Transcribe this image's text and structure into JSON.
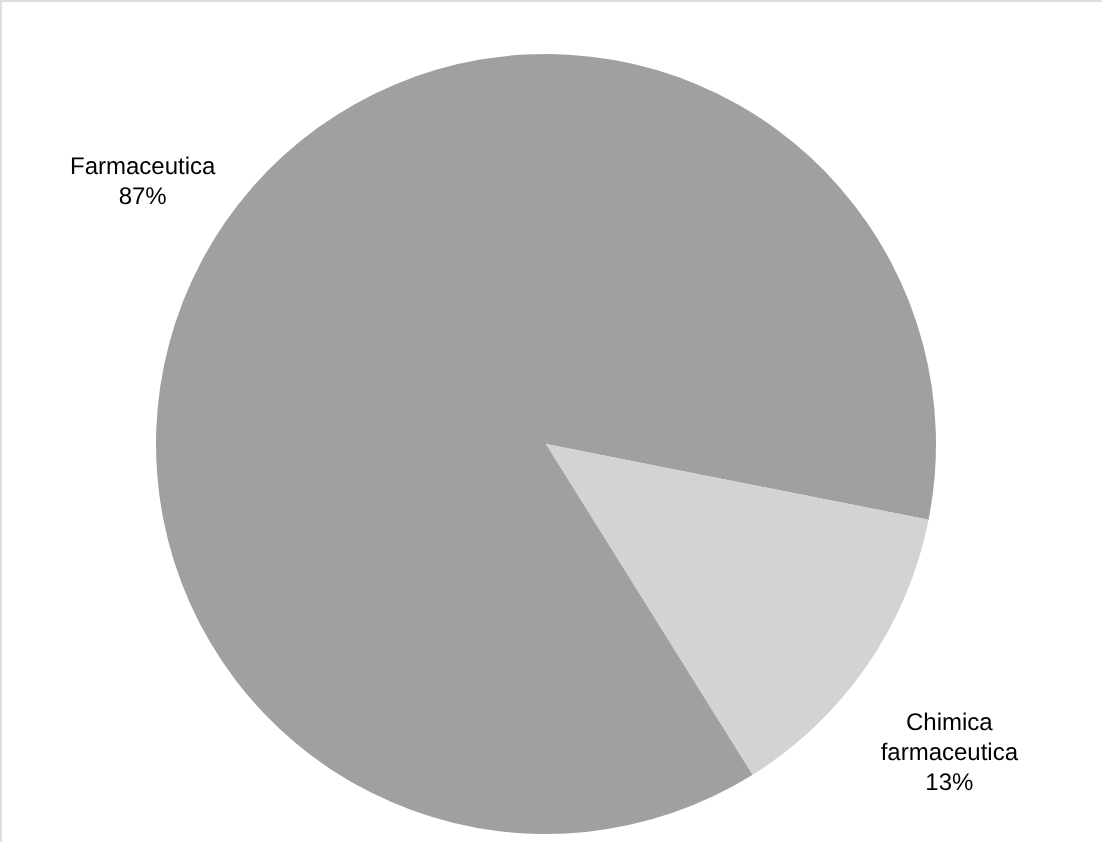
{
  "chart_data": {
    "type": "pie",
    "categories": [
      "Farmaceutica",
      "Chimica farmaceutica"
    ],
    "values": [
      87,
      13
    ],
    "colors": [
      "#a0a0a0",
      "#d3d3d3"
    ],
    "value_labels": [
      "87%",
      "13%"
    ],
    "legend": false
  }
}
